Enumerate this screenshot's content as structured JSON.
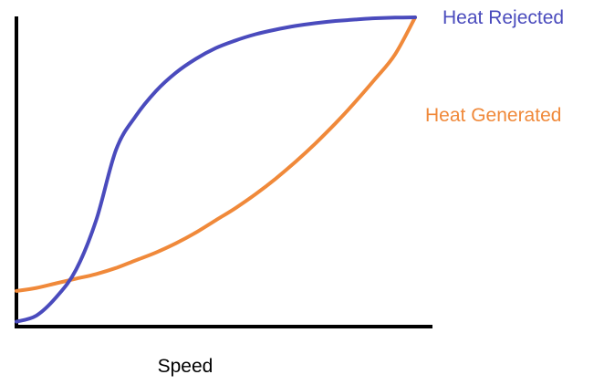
{
  "chart_data": {
    "type": "line",
    "title": "",
    "xlabel": "Speed",
    "ylabel": "",
    "xlim": [
      0,
      1
    ],
    "ylim": [
      0,
      1
    ],
    "grid": false,
    "series": [
      {
        "name": "Heat Rejected",
        "color": "#4a4bbd",
        "label_position": "right of the curve's end, top",
        "x": [
          0.0,
          0.05,
          0.1,
          0.15,
          0.2,
          0.25,
          0.3,
          0.35,
          0.4,
          0.45,
          0.5,
          0.55,
          0.6,
          0.65,
          0.7,
          0.75,
          0.8,
          0.85,
          0.9,
          0.95,
          1.0
        ],
        "y": [
          0.01,
          0.03,
          0.09,
          0.18,
          0.34,
          0.57,
          0.68,
          0.76,
          0.82,
          0.865,
          0.9,
          0.925,
          0.945,
          0.96,
          0.972,
          0.981,
          0.988,
          0.993,
          0.997,
          0.999,
          1.0
        ]
      },
      {
        "name": "Heat Generated",
        "color": "#f0893a",
        "label_position": "right of the curve, upper middle",
        "x": [
          0.0,
          0.05,
          0.1,
          0.15,
          0.2,
          0.25,
          0.3,
          0.35,
          0.4,
          0.45,
          0.5,
          0.55,
          0.6,
          0.65,
          0.7,
          0.75,
          0.8,
          0.85,
          0.9,
          0.95,
          1.0
        ],
        "y": [
          0.11,
          0.12,
          0.135,
          0.15,
          0.165,
          0.185,
          0.21,
          0.235,
          0.265,
          0.3,
          0.34,
          0.38,
          0.425,
          0.475,
          0.53,
          0.59,
          0.655,
          0.725,
          0.8,
          0.88,
          1.0
        ]
      }
    ]
  }
}
